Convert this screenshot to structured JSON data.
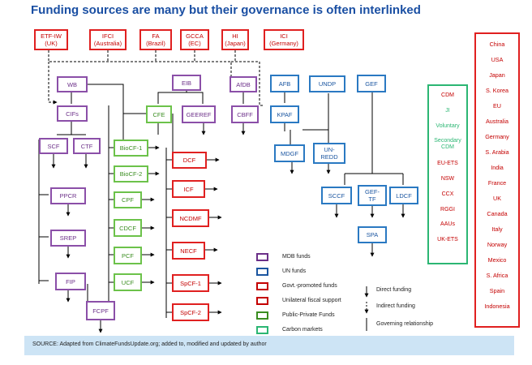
{
  "title": "Funding sources are many but their governance is often interlinked",
  "sources": [
    {
      "line1": "ETF-IW",
      "line2": "(UK)"
    },
    {
      "line1": "IFCI",
      "line2": "(Australia)"
    },
    {
      "line1": "FA",
      "line2": "(Brazil)"
    },
    {
      "line1": "GCCA",
      "line2": "(EC)"
    },
    {
      "line1": "HI",
      "line2": "(Japan)"
    },
    {
      "line1": "ICI",
      "line2": "(Germany)"
    }
  ],
  "nodes": {
    "wb": "WB",
    "cifs": "CIFs",
    "scf": "SCF",
    "ctf": "CTF",
    "ppcr": "PPCR",
    "srep": "SREP",
    "fip": "FIP",
    "fcpf": "FCPF",
    "eib": "EIB",
    "cfe": "CFE",
    "geeref": "GEEREF",
    "afdb": "AfDB",
    "cbff": "CBFF",
    "biocf1": "BioCF-1",
    "biocf2": "BioCF-2",
    "cpf": "CPF",
    "cdcf": "CDCF",
    "pcf": "PCF",
    "ucf": "UCF",
    "dcf": "DCF",
    "icf": "ICF",
    "ncdmf": "NCDMF",
    "necf": "NECF",
    "spcf1": "SpCF-1",
    "spcf2": "SpCF-2",
    "afb": "AFB",
    "kpaf": "KPAF",
    "undp": "UNDP",
    "gef": "GEF",
    "mdgf": "MDGF",
    "unredd1": "UN-",
    "unredd2": "REDD",
    "sccf": "SCCF",
    "geftf1": "GEF-",
    "geftf2": "TF",
    "ldcf": "LDCF",
    "spa": "SPA"
  },
  "carbon_markets": [
    {
      "label": "CDM",
      "color": "red"
    },
    {
      "label": "JI",
      "color": "green"
    },
    {
      "label": "Voluntary",
      "color": "green"
    },
    {
      "label": "Secondary CDM",
      "color": "green"
    },
    {
      "label": "EU-ETS",
      "color": "red"
    },
    {
      "label": "NSW",
      "color": "red"
    },
    {
      "label": "CCX",
      "color": "red"
    },
    {
      "label": "RGGI",
      "color": "red"
    },
    {
      "label": "AAUs",
      "color": "red"
    },
    {
      "label": "UK-ETS",
      "color": "red"
    }
  ],
  "countries": [
    "China",
    "USA",
    "Japan",
    "S. Korea",
    "EU",
    "Australia",
    "Germany",
    "S. Arabia",
    "India",
    "France",
    "UK",
    "Canada",
    "Italy",
    "Norway",
    "Mexico",
    "S. Africa",
    "Spain",
    "Indonesia"
  ],
  "legend": {
    "mdb": "MDB funds",
    "un": "UN funds",
    "govt": "Govt.-promoted funds",
    "fiscal": "Unilateral fiscal support",
    "ppf": "Public-Private Funds",
    "carbon": "Carbon markets",
    "direct": "Direct funding",
    "indirect": "Indirect funding",
    "governing": "Governing relationship"
  },
  "source": "SOURCE: Adapted from ClimateFundsUpdate.org; added to, modified and updated by author",
  "colors": {
    "purple": "#8b4fa8",
    "blue": "#2a79c2",
    "red": "#e02020",
    "green": "#6cc24a",
    "carbon_green": "#2bb673",
    "title": "#1a4fa3",
    "source_bg": "#cde4f5"
  }
}
